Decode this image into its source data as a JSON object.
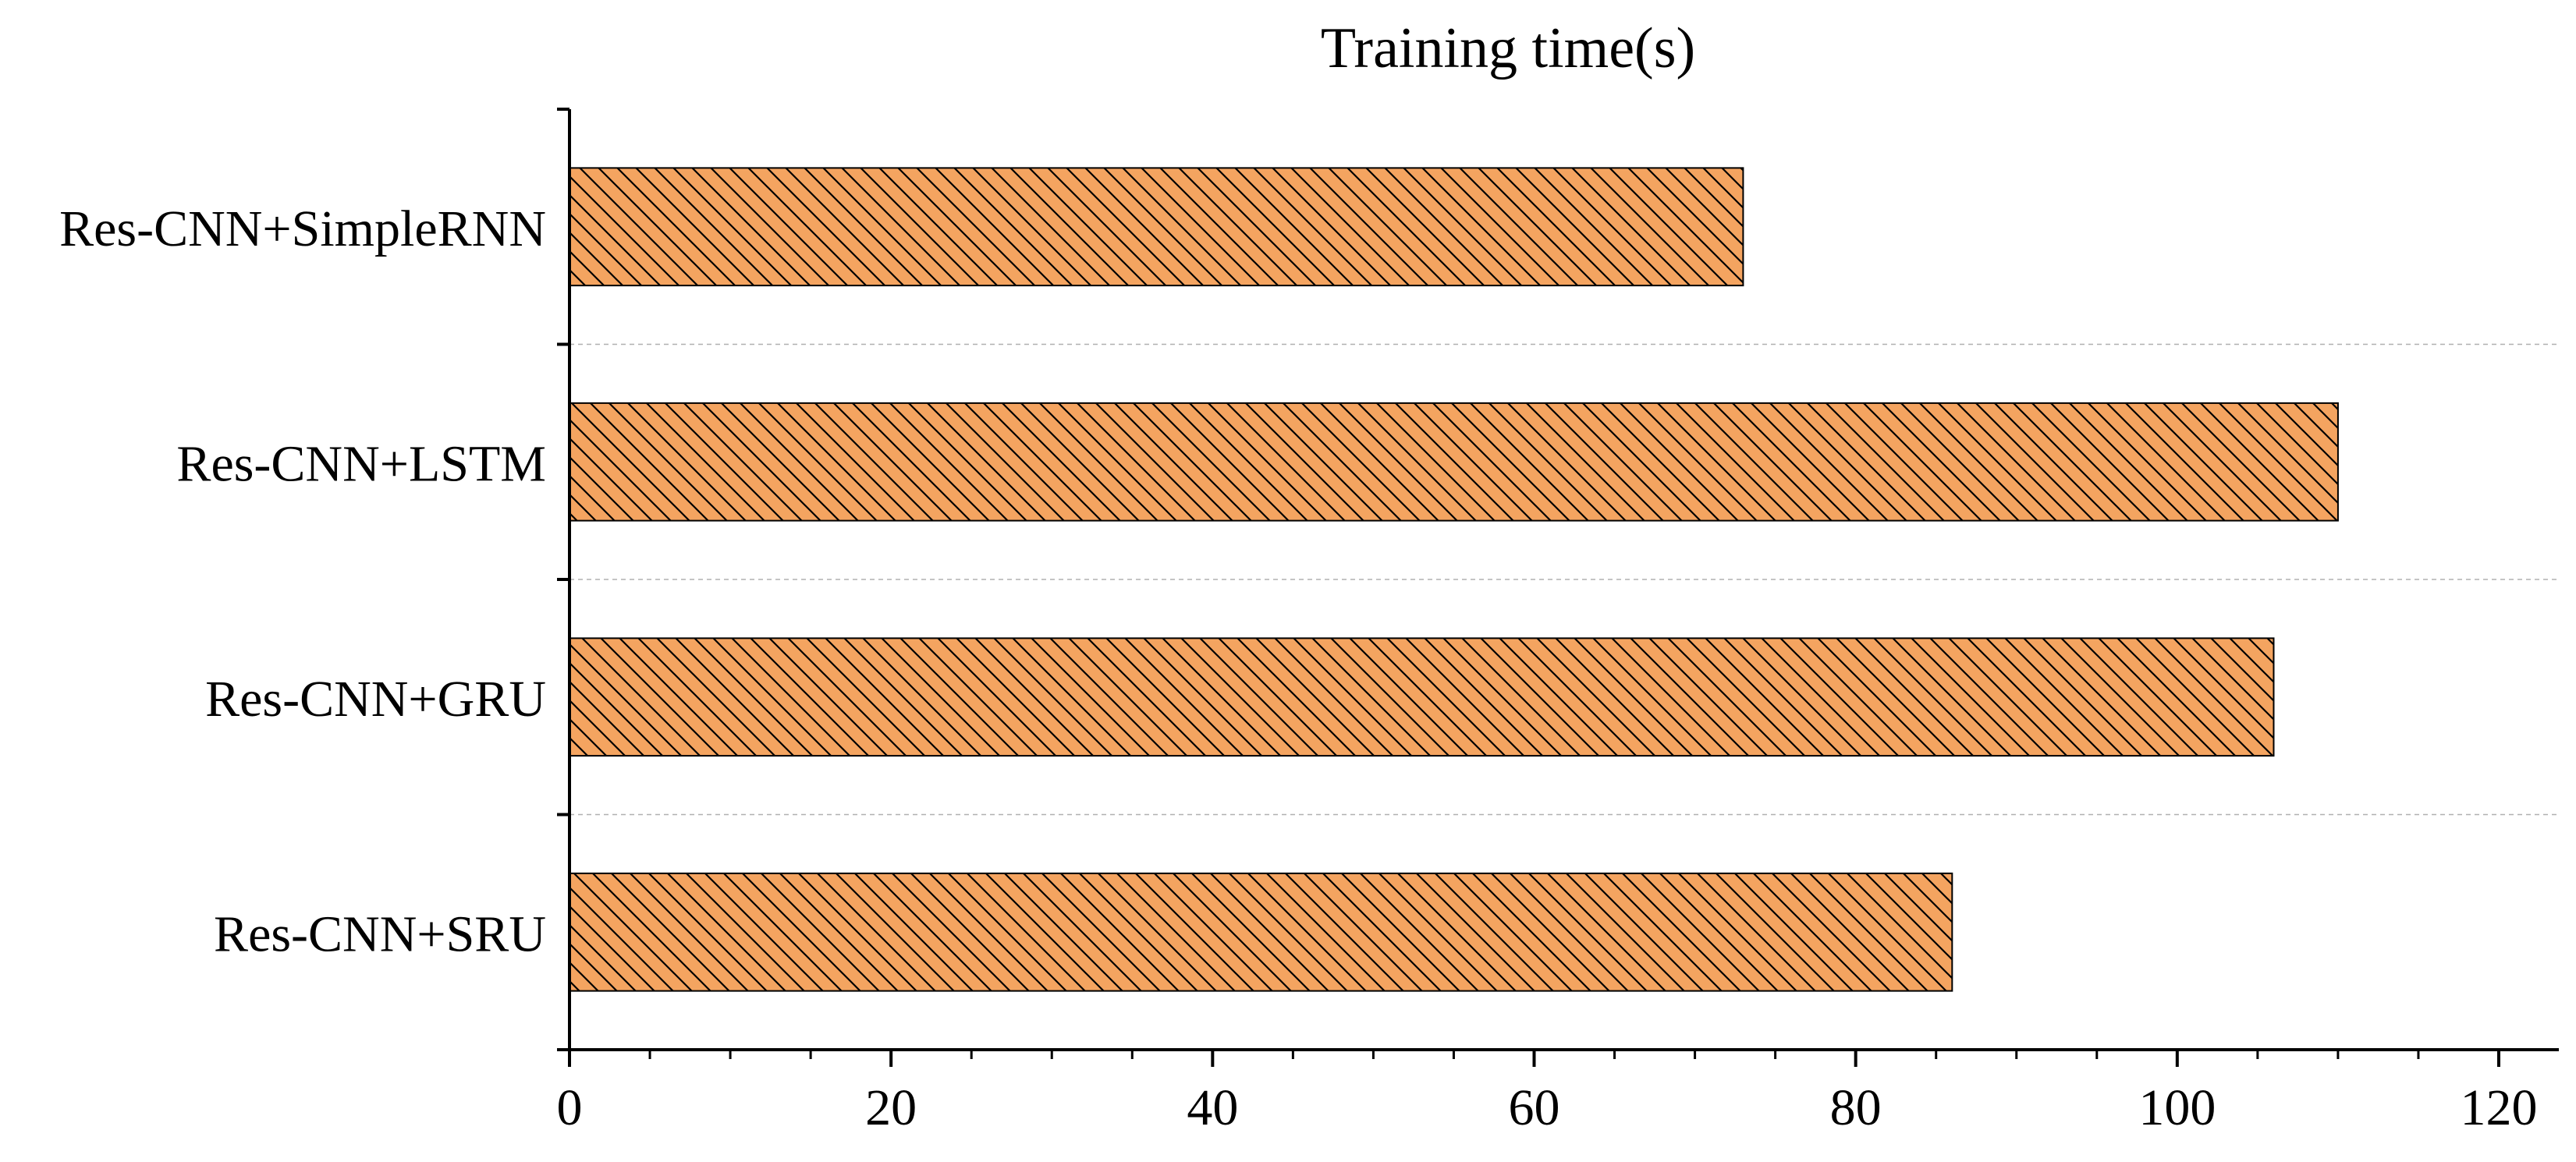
{
  "chart_data": {
    "type": "bar",
    "orientation": "horizontal",
    "title": "Training time(s)",
    "categories": [
      "Res-CNN+SimpleRNN",
      "Res-CNN+LSTM",
      "Res-CNN+GRU",
      "Res-CNN+SRU"
    ],
    "values": [
      73,
      110,
      106,
      86
    ],
    "xlabel": "",
    "ylabel": "",
    "xlim": [
      0,
      125
    ],
    "xticks": [
      0,
      20,
      40,
      60,
      80,
      100,
      120
    ],
    "xtick_labels": [
      "0",
      "20",
      "40",
      "60",
      "80",
      "100",
      "120"
    ],
    "grid": "horizontal dashed separators between categories",
    "legend": "none",
    "bar_color": "#f4a460",
    "bar_hatch": "diagonal lines, black",
    "bar_edge_color": "#000000"
  }
}
